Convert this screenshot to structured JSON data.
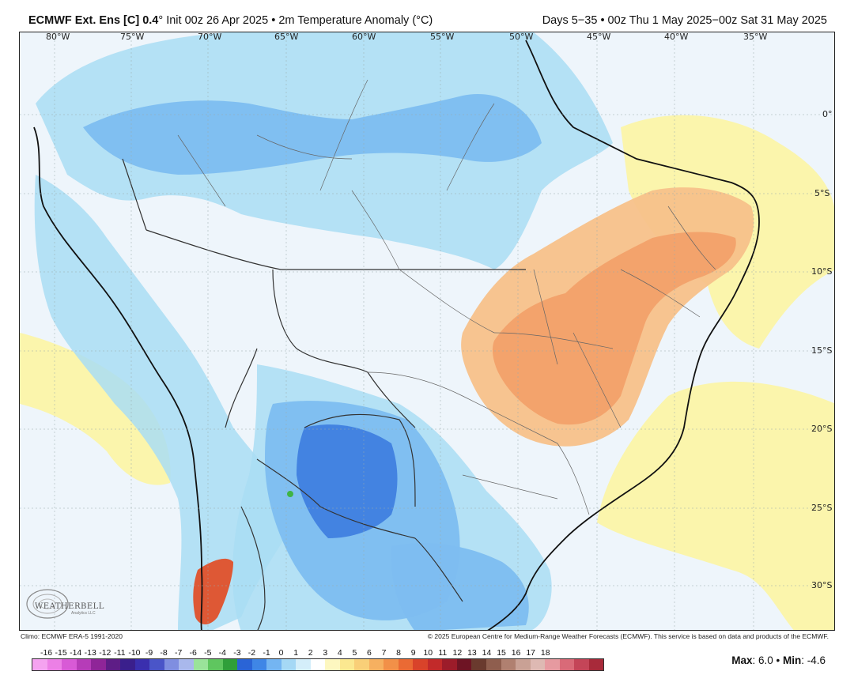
{
  "header": {
    "model": "ECMWF Ext. Ens [C] 0.4",
    "degree": "°",
    "init": "Init 00z 26 Apr 2025",
    "bullet": "•",
    "variable": "2m Temperature Anomaly (°C)",
    "valid": "Days 5−35 • 00z Thu 1 May 2025−00z Sat 31 May 2025"
  },
  "map": {
    "lon_labels": [
      "80°W",
      "75°W",
      "70°W",
      "65°W",
      "60°W",
      "55°W",
      "50°W",
      "45°W",
      "40°W",
      "35°W"
    ],
    "lat_labels": [
      "0°",
      "5°S",
      "10°S",
      "15°S",
      "20°S",
      "25°S",
      "30°S"
    ],
    "colors": {
      "ocean_neutral": "#eef5fb",
      "light_blue": "#a9ddf3",
      "medium_blue": "#7dbdf0",
      "blue": "#5a9ee8",
      "dark_blue": "#3f7fdf",
      "light_yellow": "#fbf4a8",
      "orange_light": "#f7c18a",
      "orange": "#f2a16a",
      "red": "#e0502a",
      "green": "#3bb33b"
    }
  },
  "logo": {
    "name": "WEATHERBELL",
    "sub": "Analytics LLC"
  },
  "credits": {
    "climo": "Climo: ECMWF ERA-5 1991-2020",
    "copyright": "© 2025 European Centre for Medium-Range Weather Forecasts (ECMWF). This service is based on data and products of the ECMWF."
  },
  "colorbar": {
    "labels": [
      "-16",
      "-15",
      "-14",
      "-13",
      "-12",
      "-11",
      "-10",
      "-9",
      "-8",
      "-7",
      "-6",
      "-5",
      "-4",
      "-3",
      "-2",
      "-1",
      "0",
      "1",
      "2",
      "3",
      "4",
      "5",
      "6",
      "7",
      "8",
      "9",
      "10",
      "11",
      "12",
      "13",
      "14",
      "15",
      "16",
      "17",
      "18"
    ],
    "swatches": [
      "#f5a3f0",
      "#ec80e6",
      "#d85ad6",
      "#b63cb8",
      "#8f2598",
      "#5e1d86",
      "#3a1f8c",
      "#3a2fae",
      "#4a55c8",
      "#7f8ee0",
      "#a9b8ec",
      "#9ae39a",
      "#5fc65f",
      "#2f9f3a",
      "#2a64d6",
      "#3f86e6",
      "#74b5f2",
      "#a5d8f5",
      "#d4eefa",
      "#ffffff",
      "#fdf7c0",
      "#fbe890",
      "#f9cf78",
      "#f6b060",
      "#f29048",
      "#ea6a34",
      "#d9432a",
      "#c22a2a",
      "#9c1c2a",
      "#6e1424",
      "#6a3a2e",
      "#8f5e4e",
      "#b08070",
      "#c9a195",
      "#deb9b3",
      "#e69aa0",
      "#d96a78",
      "#c44558",
      "#a82a3a"
    ]
  },
  "stats": {
    "max_label": "Max",
    "max_value": ": 6.0",
    "sep": " • ",
    "min_label": "Min",
    "min_value": ": -4.6"
  }
}
